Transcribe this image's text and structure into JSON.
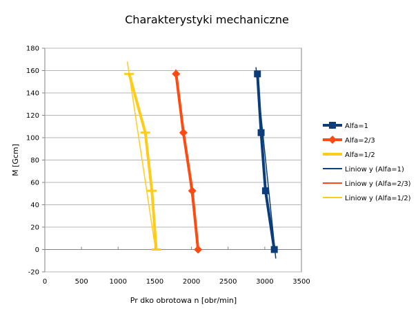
{
  "chart_data": {
    "type": "line",
    "title": "Charakterystyki mechaniczne",
    "xlabel": "Pr  dko    obrotowa n [obr/min]",
    "ylabel": "M [Gcm]",
    "xlim": [
      0,
      3500
    ],
    "ylim": [
      -20,
      180
    ],
    "xticks": [
      0,
      500,
      1000,
      1500,
      2000,
      2500,
      3000,
      3500
    ],
    "yticks": [
      -20,
      0,
      20,
      40,
      60,
      80,
      100,
      120,
      140,
      160,
      180
    ],
    "grid": "horizontal",
    "legend_position": "right",
    "series": [
      {
        "name": "Alfa=1",
        "color": "#0a3d7a",
        "marker": "square",
        "points": [
          [
            2900,
            157
          ],
          [
            2950,
            104.5
          ],
          [
            3010,
            52.5
          ],
          [
            3130,
            0
          ]
        ]
      },
      {
        "name": "Alfa=2/3",
        "color": "#ff4a12",
        "marker": "diamond",
        "points": [
          [
            1790,
            157
          ],
          [
            1890,
            104.5
          ],
          [
            2010,
            52.5
          ],
          [
            2090,
            0
          ]
        ]
      },
      {
        "name": "Alfa=1/2",
        "color": "#ffcc1a",
        "marker": "dash",
        "points": [
          [
            1150,
            157
          ],
          [
            1370,
            104.5
          ],
          [
            1460,
            52.5
          ],
          [
            1520,
            0
          ]
        ]
      }
    ],
    "trendlines": [
      {
        "name": "Liniow y (Alfa=1)",
        "color": "#0a3d7a",
        "x0": 2880,
        "y0": 163,
        "x1": 3150,
        "y1": -8
      },
      {
        "name": "Liniow y (Alfa=2/3)",
        "color": "#ff4a12",
        "x0": 1785,
        "y0": 161,
        "x1": 2100,
        "y1": -2
      },
      {
        "name": "Liniow y (Alfa=1/2)",
        "color": "#ffcc1a",
        "x0": 1125,
        "y0": 168,
        "x1": 1510,
        "y1": 0
      }
    ]
  }
}
